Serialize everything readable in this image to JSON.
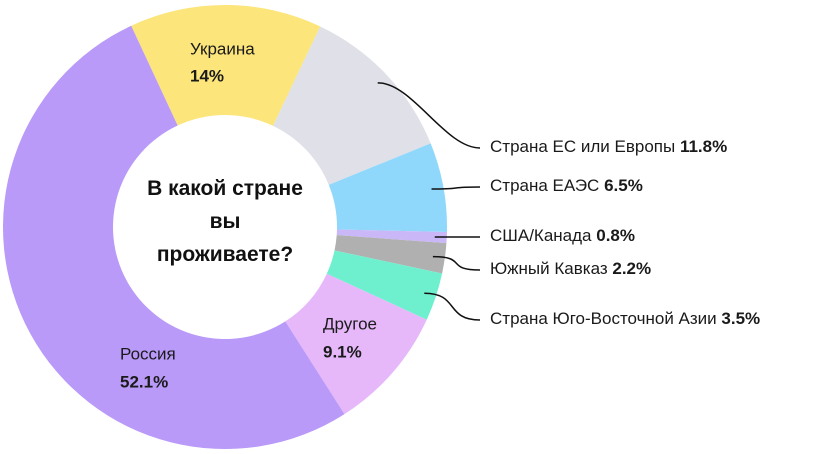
{
  "chart_data": {
    "type": "donut",
    "title": "В какой стране вы проживаете?",
    "categories": [
      "Украина",
      "Страна ЕС или Европы",
      "Страна ЕАЭС",
      "США/Канада",
      "Южный Кавказ",
      "Страна Юго-Восточной Азии",
      "Другое",
      "Россия"
    ],
    "values": [
      14,
      11.8,
      6.5,
      0.8,
      2.2,
      3.5,
      9.1,
      52.1
    ],
    "value_labels": [
      "14%",
      "11.8%",
      "6.5%",
      "0.8%",
      "2.2%",
      "3.5%",
      "9.1%",
      "52.1%"
    ],
    "colors": [
      "#fce57a",
      "#dfe0e8",
      "#8fd8fb",
      "#c9b7f7",
      "#b0b0b0",
      "#6ef0cf",
      "#e6b8fa",
      "#b99af8"
    ]
  }
}
